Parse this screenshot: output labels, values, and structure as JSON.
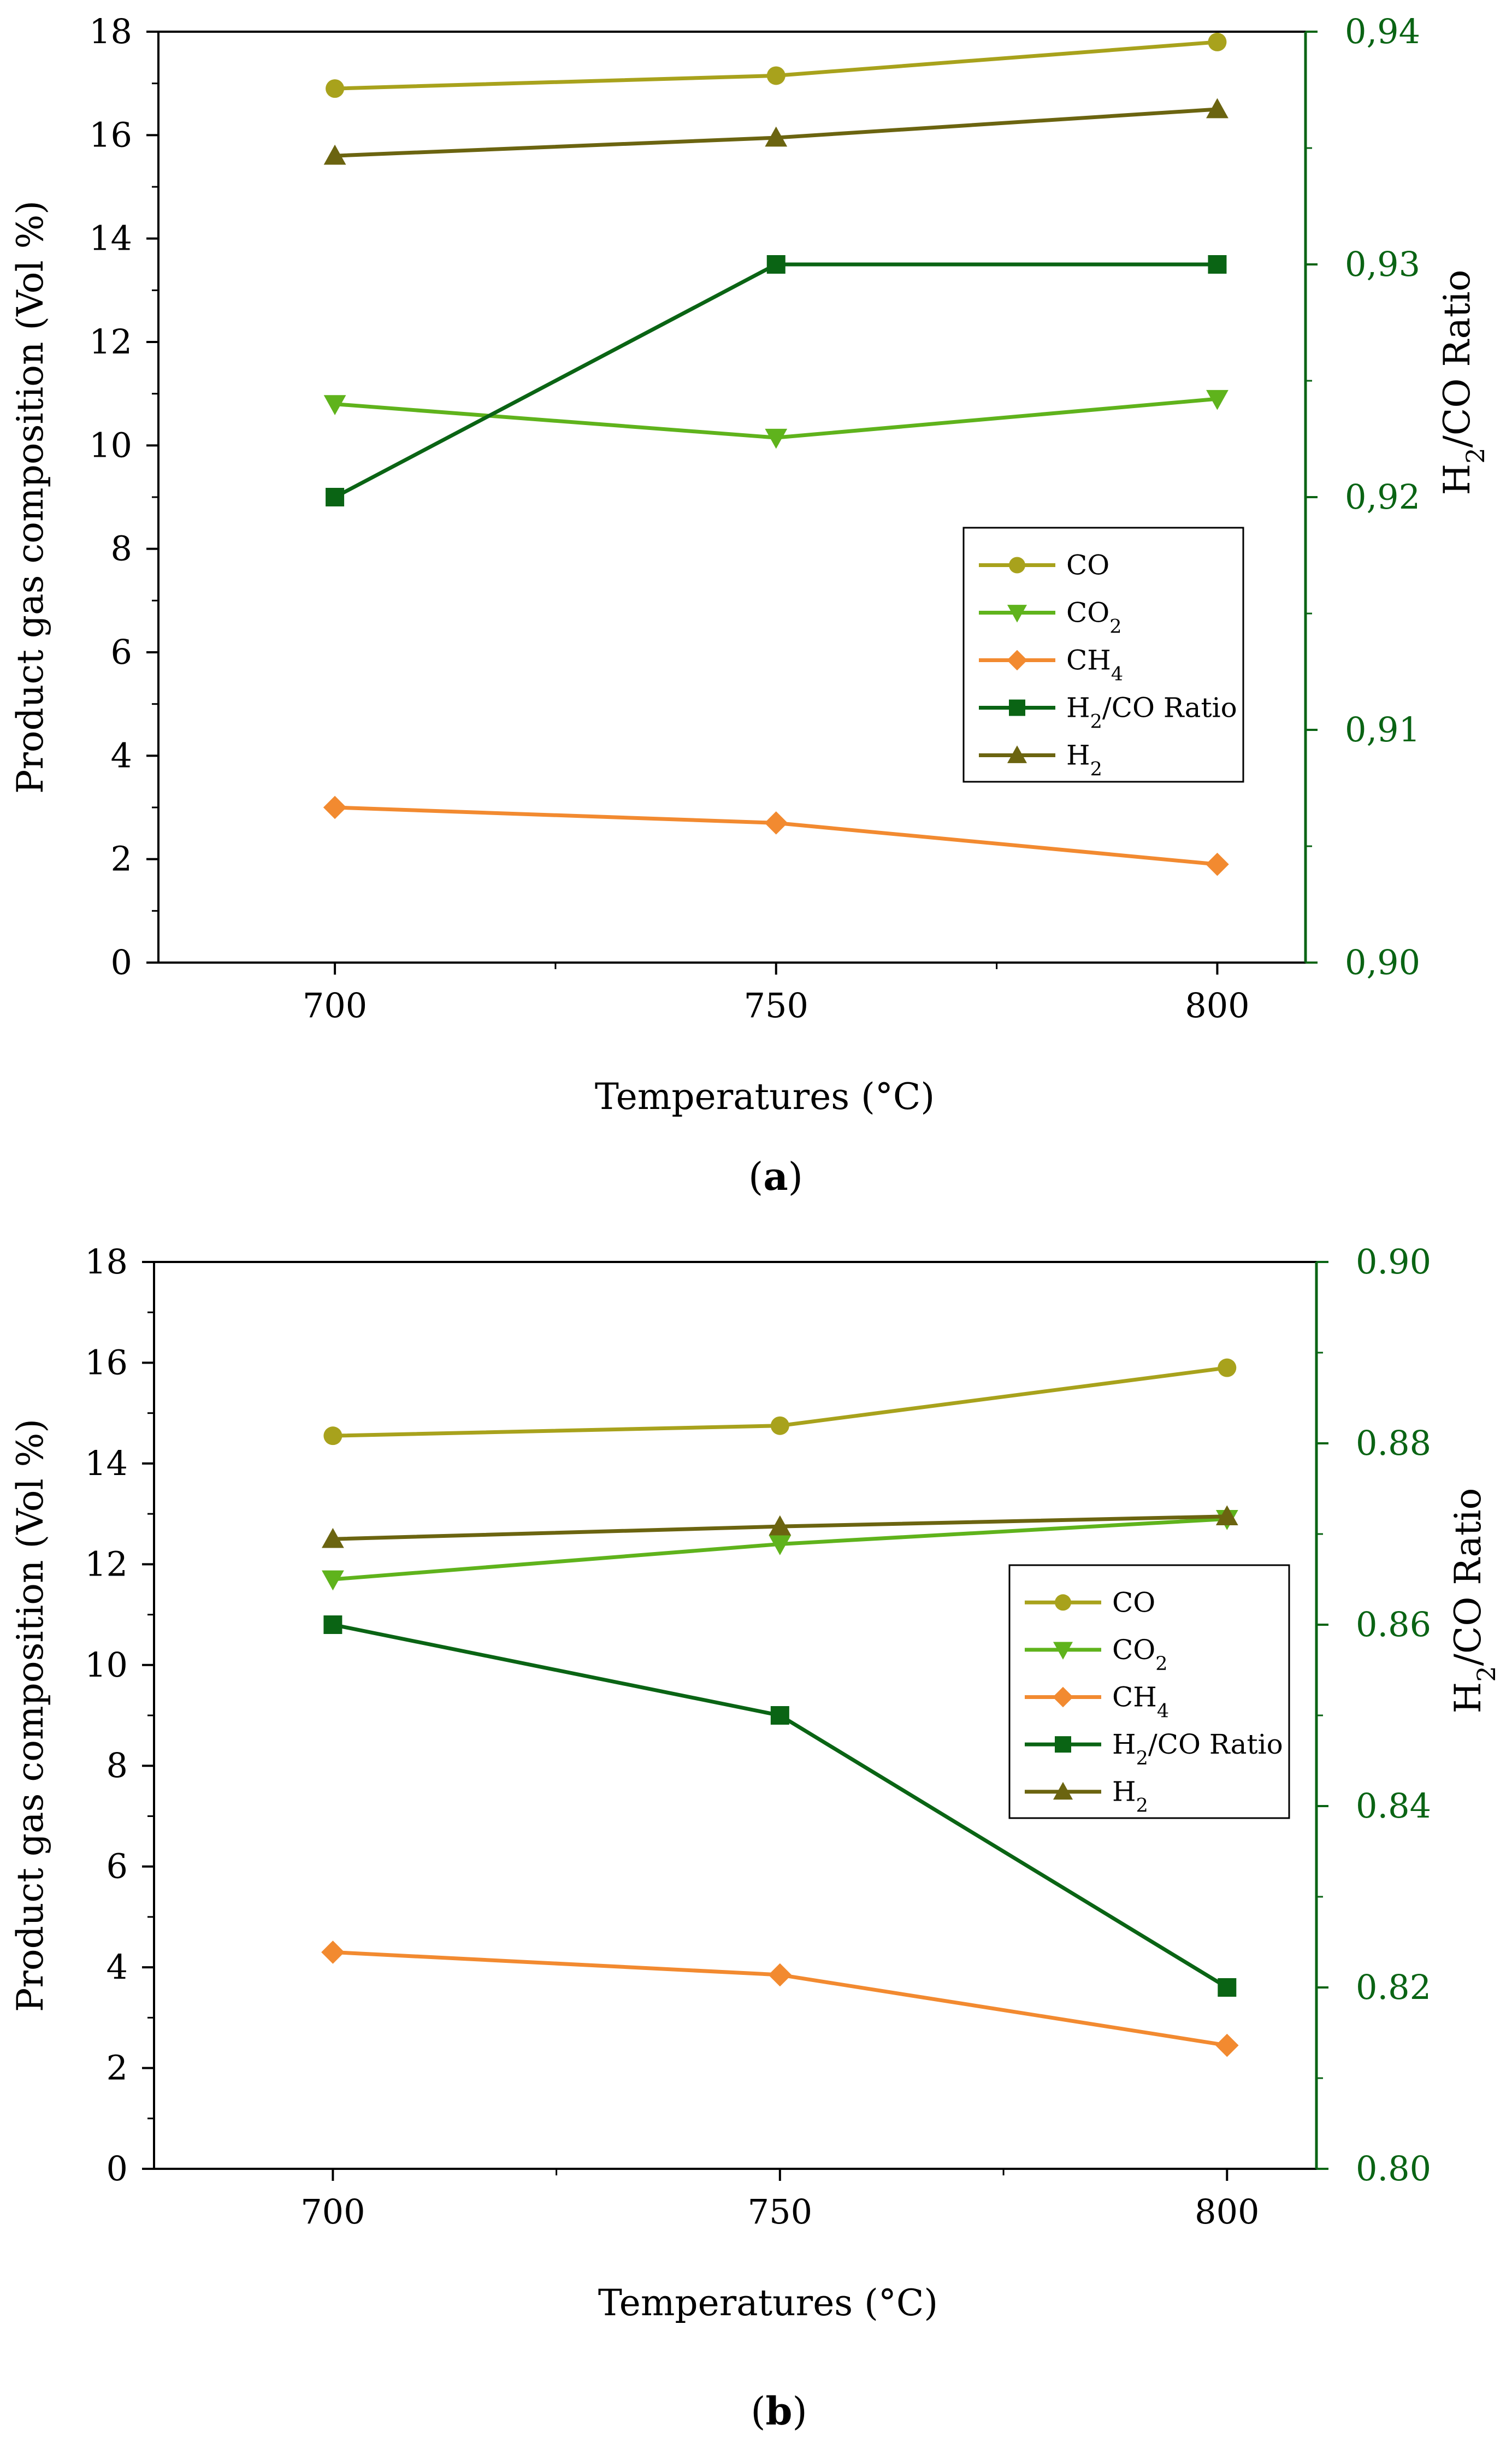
{
  "chart_data": [
    {
      "id": "a",
      "panel_label": "a",
      "type": "line",
      "xlabel": "Temperatures (°C)",
      "ylabel": "Product gas composition (Vol %)",
      "y2label": "H2/CO Ratio",
      "x": [
        700,
        750,
        800
      ],
      "x_ticks": [
        "700",
        "750",
        "800"
      ],
      "ylim": [
        0,
        18
      ],
      "y_ticks": [
        "0",
        "2",
        "4",
        "6",
        "8",
        "10",
        "12",
        "14",
        "16",
        "18"
      ],
      "y2lim": [
        0.9,
        0.94
      ],
      "y2_ticks": [
        "0,90",
        "0,91",
        "0,92",
        "0,93",
        "0,94"
      ],
      "legend_position": "center-right",
      "series": [
        {
          "key": "co",
          "name": "CO",
          "axis": "left",
          "color": "#a8a21c",
          "marker": "circle",
          "values": [
            16.9,
            17.15,
            17.8
          ]
        },
        {
          "key": "co2",
          "name": "CO2",
          "axis": "left",
          "color": "#5fb31c",
          "marker": "triangle-down",
          "values": [
            10.8,
            10.15,
            10.9
          ]
        },
        {
          "key": "ch4",
          "name": "CH4",
          "axis": "left",
          "color": "#f28a30",
          "marker": "diamond",
          "values": [
            3.0,
            2.7,
            1.9
          ]
        },
        {
          "key": "ratio",
          "name": "H2/CO Ratio",
          "axis": "right",
          "color": "#0a6414",
          "marker": "square",
          "values": [
            0.92,
            0.93,
            0.93
          ]
        },
        {
          "key": "h2",
          "name": "H2",
          "axis": "left",
          "color": "#6b6410",
          "marker": "triangle-up",
          "values": [
            15.6,
            15.95,
            16.5
          ]
        }
      ]
    },
    {
      "id": "b",
      "panel_label": "b",
      "type": "line",
      "xlabel": "Temperatures (°C)",
      "ylabel": "Product gas composition (Vol %)",
      "y2label": "H2/CO Ratio",
      "x": [
        700,
        750,
        800
      ],
      "x_ticks": [
        "700",
        "750",
        "800"
      ],
      "ylim": [
        0,
        18
      ],
      "y_ticks": [
        "0",
        "2",
        "4",
        "6",
        "8",
        "10",
        "12",
        "14",
        "16",
        "18"
      ],
      "y2lim": [
        0.8,
        0.9
      ],
      "y2_ticks": [
        "0.80",
        "0.82",
        "0.84",
        "0.86",
        "0.88",
        "0.90"
      ],
      "legend_position": "center-right",
      "series": [
        {
          "key": "co",
          "name": "CO",
          "axis": "left",
          "color": "#a8a21c",
          "marker": "circle",
          "values": [
            14.55,
            14.75,
            15.9
          ]
        },
        {
          "key": "co2",
          "name": "CO2",
          "axis": "left",
          "color": "#5fb31c",
          "marker": "triangle-down",
          "values": [
            11.7,
            12.4,
            12.9
          ]
        },
        {
          "key": "ch4",
          "name": "CH4",
          "axis": "left",
          "color": "#f28a30",
          "marker": "diamond",
          "values": [
            4.3,
            3.85,
            2.45
          ]
        },
        {
          "key": "ratio",
          "name": "H2/CO Ratio",
          "axis": "right",
          "color": "#0a6414",
          "marker": "square",
          "values": [
            0.86,
            0.85,
            0.82
          ]
        },
        {
          "key": "h2",
          "name": "H2",
          "axis": "left",
          "color": "#6b6410",
          "marker": "triangle-up",
          "values": [
            12.5,
            12.75,
            12.95
          ]
        }
      ]
    }
  ],
  "colors": {
    "axis_left": "#000000",
    "axis_right": "#0a6414"
  }
}
